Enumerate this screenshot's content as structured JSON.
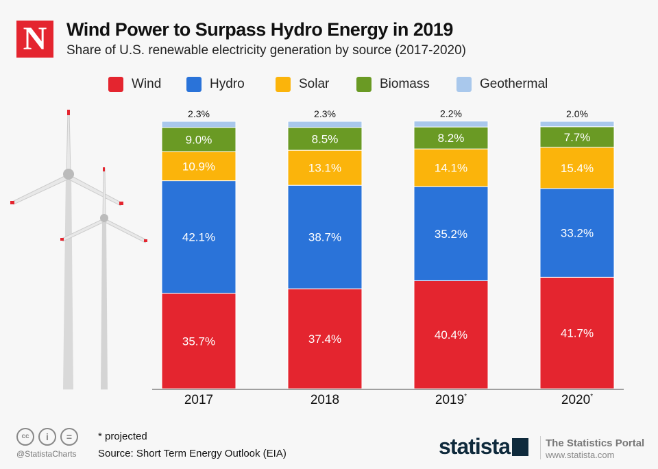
{
  "header": {
    "logo": "N",
    "title": "Wind Power to Surpass Hydro Energy in 2019",
    "subtitle": "Share of U.S. renewable electricity generation by source (2017-2020)"
  },
  "chart_data": {
    "type": "bar",
    "stacked": true,
    "categories": [
      "2017",
      "2018",
      "2019*",
      "2020*"
    ],
    "series": [
      {
        "name": "Wind",
        "color": "#e4252f",
        "values": [
          35.7,
          37.4,
          40.4,
          41.7
        ]
      },
      {
        "name": "Hydro",
        "color": "#2a73d9",
        "values": [
          42.1,
          38.7,
          35.2,
          33.2
        ]
      },
      {
        "name": "Solar",
        "color": "#fbb40b",
        "values": [
          10.9,
          13.1,
          14.1,
          15.4
        ]
      },
      {
        "name": "Biomass",
        "color": "#6a9a24",
        "values": [
          9.0,
          8.5,
          8.2,
          7.7
        ]
      },
      {
        "name": "Geothermal",
        "color": "#a9c8ec",
        "values": [
          2.3,
          2.3,
          2.2,
          2.0
        ]
      }
    ],
    "value_suffix": "%",
    "ylim": [
      0,
      100
    ],
    "grid": false,
    "legend": "top"
  },
  "footer": {
    "note": "* projected",
    "source": "Source: Short Term Energy Outlook (EIA)",
    "handle": "@StatistaCharts",
    "brand": "statista",
    "portal": "The Statistics Portal",
    "url": "www.statista.com"
  }
}
